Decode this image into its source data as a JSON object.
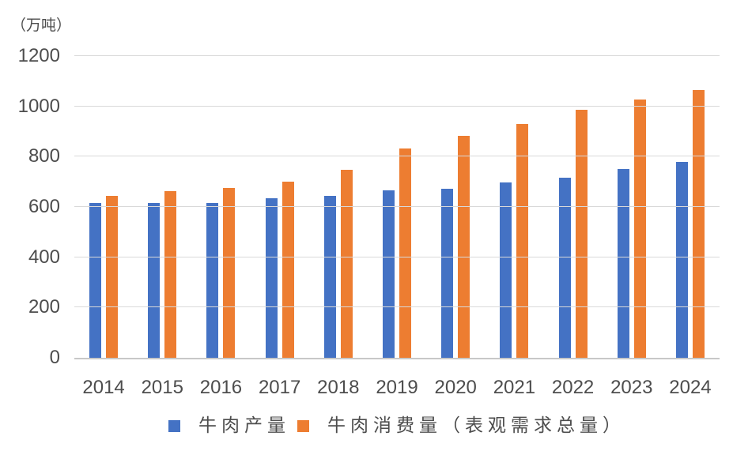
{
  "chart_data": {
    "type": "bar",
    "title": "",
    "unit_label": "（万吨）",
    "categories": [
      "2014",
      "2015",
      "2016",
      "2017",
      "2018",
      "2019",
      "2020",
      "2021",
      "2022",
      "2023",
      "2024"
    ],
    "series": [
      {
        "name": "牛肉产量",
        "color": "#4472c4",
        "values": [
          616,
          617,
          617,
          634,
          644,
          666,
          672,
          697,
          717,
          752,
          778
        ]
      },
      {
        "name": "牛肉消费量（表观需求总量）",
        "color": "#ed7d31",
        "values": [
          645,
          663,
          674,
          702,
          747,
          833,
          884,
          930,
          986,
          1027,
          1065
        ]
      }
    ],
    "xlabel": "",
    "ylabel": "（万吨）",
    "ylim": [
      0,
      1200
    ],
    "yticks": [
      0,
      200,
      400,
      600,
      800,
      1000,
      1200
    ],
    "grid": true,
    "legend_position": "bottom",
    "colors": {
      "grid_line": "#d9d9d9",
      "axis_line": "#c8c8c8",
      "label_text": "#4d4d4d",
      "background": "#ffffff"
    }
  }
}
